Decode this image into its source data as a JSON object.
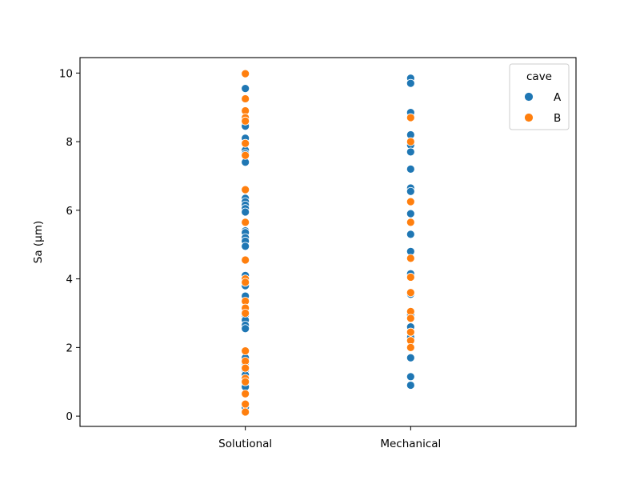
{
  "chart_data": {
    "type": "scatter",
    "title": "",
    "xlabel": "",
    "ylabel": "Sa (μm)",
    "categories": [
      "Solutional",
      "Mechanical"
    ],
    "ylim": [
      -0.3,
      10.45
    ],
    "yticks": [
      0,
      2,
      4,
      6,
      8,
      10
    ],
    "grid": false,
    "legend": {
      "title": "cave",
      "placement": "top-right"
    },
    "series": [
      {
        "name": "A",
        "color": "#1f77b4",
        "points": [
          {
            "x": "Solutional",
            "y": 9.55
          },
          {
            "x": "Solutional",
            "y": 8.5
          },
          {
            "x": "Solutional",
            "y": 8.45
          },
          {
            "x": "Solutional",
            "y": 8.1
          },
          {
            "x": "Solutional",
            "y": 7.75
          },
          {
            "x": "Solutional",
            "y": 7.65
          },
          {
            "x": "Solutional",
            "y": 7.4
          },
          {
            "x": "Solutional",
            "y": 6.35
          },
          {
            "x": "Solutional",
            "y": 6.25
          },
          {
            "x": "Solutional",
            "y": 6.15
          },
          {
            "x": "Solutional",
            "y": 6.05
          },
          {
            "x": "Solutional",
            "y": 5.95
          },
          {
            "x": "Solutional",
            "y": 5.4
          },
          {
            "x": "Solutional",
            "y": 5.35
          },
          {
            "x": "Solutional",
            "y": 5.2
          },
          {
            "x": "Solutional",
            "y": 5.1
          },
          {
            "x": "Solutional",
            "y": 4.95
          },
          {
            "x": "Solutional",
            "y": 4.1
          },
          {
            "x": "Solutional",
            "y": 3.95
          },
          {
            "x": "Solutional",
            "y": 3.8
          },
          {
            "x": "Solutional",
            "y": 3.5
          },
          {
            "x": "Solutional",
            "y": 2.95
          },
          {
            "x": "Solutional",
            "y": 2.8
          },
          {
            "x": "Solutional",
            "y": 2.65
          },
          {
            "x": "Solutional",
            "y": 2.55
          },
          {
            "x": "Solutional",
            "y": 1.7
          },
          {
            "x": "Solutional",
            "y": 1.55
          },
          {
            "x": "Solutional",
            "y": 1.35
          },
          {
            "x": "Solutional",
            "y": 1.2
          },
          {
            "x": "Solutional",
            "y": 0.95
          },
          {
            "x": "Solutional",
            "y": 0.85
          },
          {
            "x": "Solutional",
            "y": 0.25
          },
          {
            "x": "Mechanical",
            "y": 9.85
          },
          {
            "x": "Mechanical",
            "y": 9.7
          },
          {
            "x": "Mechanical",
            "y": 8.85
          },
          {
            "x": "Mechanical",
            "y": 8.2
          },
          {
            "x": "Mechanical",
            "y": 7.9
          },
          {
            "x": "Mechanical",
            "y": 7.7
          },
          {
            "x": "Mechanical",
            "y": 7.2
          },
          {
            "x": "Mechanical",
            "y": 6.65
          },
          {
            "x": "Mechanical",
            "y": 6.55
          },
          {
            "x": "Mechanical",
            "y": 5.9
          },
          {
            "x": "Mechanical",
            "y": 5.3
          },
          {
            "x": "Mechanical",
            "y": 4.8
          },
          {
            "x": "Mechanical",
            "y": 4.15
          },
          {
            "x": "Mechanical",
            "y": 3.55
          },
          {
            "x": "Mechanical",
            "y": 2.95
          },
          {
            "x": "Mechanical",
            "y": 2.6
          },
          {
            "x": "Mechanical",
            "y": 2.3
          },
          {
            "x": "Mechanical",
            "y": 1.7
          },
          {
            "x": "Mechanical",
            "y": 1.15
          },
          {
            "x": "Mechanical",
            "y": 0.9
          }
        ]
      },
      {
        "name": "B",
        "color": "#ff7f0e",
        "points": [
          {
            "x": "Solutional",
            "y": 9.98
          },
          {
            "x": "Solutional",
            "y": 9.25
          },
          {
            "x": "Solutional",
            "y": 8.9
          },
          {
            "x": "Solutional",
            "y": 8.7
          },
          {
            "x": "Solutional",
            "y": 8.6
          },
          {
            "x": "Solutional",
            "y": 7.95
          },
          {
            "x": "Solutional",
            "y": 7.6
          },
          {
            "x": "Solutional",
            "y": 6.6
          },
          {
            "x": "Solutional",
            "y": 5.65
          },
          {
            "x": "Solutional",
            "y": 4.55
          },
          {
            "x": "Solutional",
            "y": 4.0
          },
          {
            "x": "Solutional",
            "y": 3.9
          },
          {
            "x": "Solutional",
            "y": 3.35
          },
          {
            "x": "Solutional",
            "y": 3.15
          },
          {
            "x": "Solutional",
            "y": 3.0
          },
          {
            "x": "Solutional",
            "y": 1.9
          },
          {
            "x": "Solutional",
            "y": 1.6
          },
          {
            "x": "Solutional",
            "y": 1.4
          },
          {
            "x": "Solutional",
            "y": 1.1
          },
          {
            "x": "Solutional",
            "y": 1.0
          },
          {
            "x": "Solutional",
            "y": 0.65
          },
          {
            "x": "Solutional",
            "y": 0.35
          },
          {
            "x": "Solutional",
            "y": 0.12
          },
          {
            "x": "Mechanical",
            "y": 8.7
          },
          {
            "x": "Mechanical",
            "y": 8.0
          },
          {
            "x": "Mechanical",
            "y": 6.25
          },
          {
            "x": "Mechanical",
            "y": 5.65
          },
          {
            "x": "Mechanical",
            "y": 4.6
          },
          {
            "x": "Mechanical",
            "y": 4.05
          },
          {
            "x": "Mechanical",
            "y": 3.6
          },
          {
            "x": "Mechanical",
            "y": 3.05
          },
          {
            "x": "Mechanical",
            "y": 2.85
          },
          {
            "x": "Mechanical",
            "y": 2.45
          },
          {
            "x": "Mechanical",
            "y": 2.2
          },
          {
            "x": "Mechanical",
            "y": 2.0
          }
        ]
      }
    ]
  }
}
